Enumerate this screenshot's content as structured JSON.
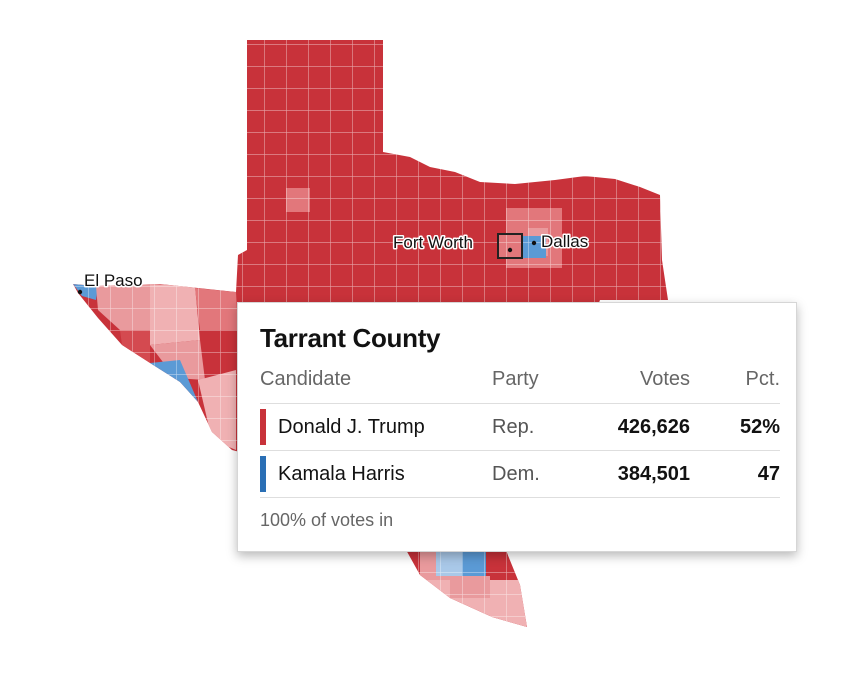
{
  "map": {
    "state": "Texas",
    "colors": {
      "rep_dark": "#c8323a",
      "rep_medium": "#e2777b",
      "rep_light": "#f0b1b3",
      "dem_medium": "#5b9ad5",
      "dem_light": "#a9c8e8",
      "county_border": "#ffffff"
    },
    "cities": [
      {
        "name": "El Paso",
        "data_name": "city-label-el-paso"
      },
      {
        "name": "Fort Worth",
        "data_name": "city-label-fort-worth"
      },
      {
        "name": "Dallas",
        "data_name": "city-label-dallas"
      }
    ]
  },
  "tooltip": {
    "county_name": "Tarrant County",
    "headers": {
      "candidate": "Candidate",
      "party": "Party",
      "votes": "Votes",
      "pct": "Pct."
    },
    "rows": [
      {
        "candidate": "Donald J. Trump",
        "party": "Rep.",
        "votes": "426,626",
        "pct": "52%",
        "color": "#c8323a"
      },
      {
        "candidate": "Kamala Harris",
        "party": "Dem.",
        "votes": "384,501",
        "pct": "47",
        "color": "#2a6fb5"
      }
    ],
    "footer": "100% of votes in"
  }
}
